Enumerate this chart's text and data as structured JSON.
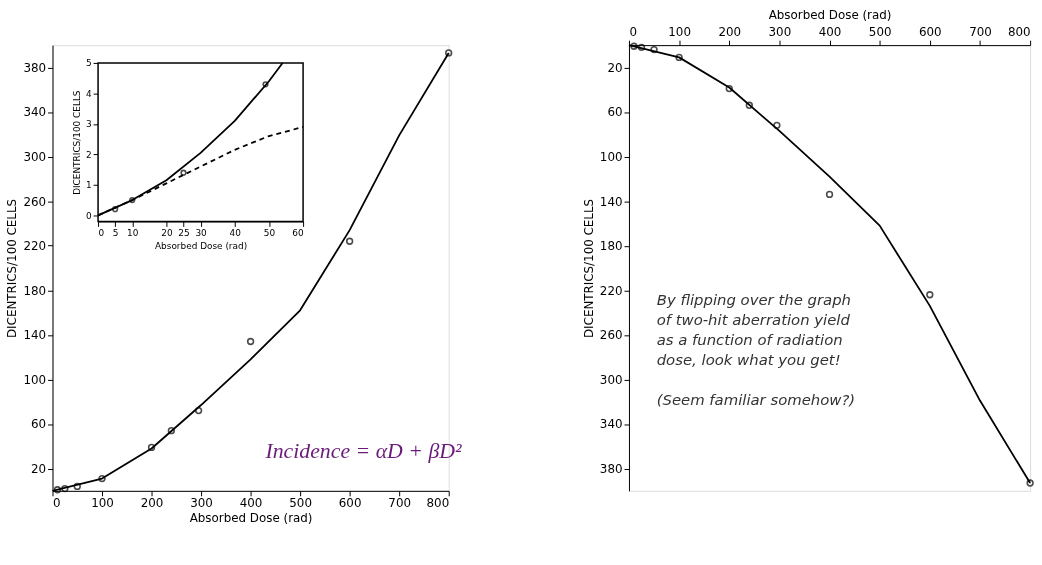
{
  "chart_data": [
    {
      "type": "scatter",
      "xlabel": "Absorbed Dose (rad)",
      "ylabel": "DICENTRICS/100 CELLS",
      "xlim": [
        0,
        800
      ],
      "ylim": [
        0,
        400
      ],
      "xticks": [
        0,
        100,
        200,
        300,
        400,
        500,
        600,
        700,
        800
      ],
      "yticks": [
        20,
        60,
        100,
        140,
        180,
        220,
        260,
        300,
        340,
        380
      ],
      "grid": false,
      "series": [
        {
          "type": "line",
          "color": "#000000",
          "line_style": "solid",
          "marker": "none",
          "x": [
            0,
            100,
            200,
            300,
            400,
            500,
            600,
            700,
            800
          ],
          "values": [
            0,
            11,
            38,
            77,
            118,
            162,
            234,
            319,
            393
          ]
        },
        {
          "color": "#000000",
          "marker": "circle",
          "x": [
            10,
            25,
            50,
            100,
            200,
            240,
            295,
            400,
            600,
            800
          ],
          "values": [
            1,
            2,
            4,
            11,
            39,
            54,
            72,
            134,
            224,
            393
          ]
        }
      ],
      "annotations": [
        "Incidence = αD + βD²"
      ]
    },
    {
      "type": "scatter",
      "xlabel": "Absorbed Dose (rad)",
      "ylabel": "DICENTRICS/100 CELLS",
      "xlim": [
        0,
        60
      ],
      "ylim": [
        -0.2,
        5
      ],
      "xticks": [
        0,
        5,
        10,
        20,
        25,
        30,
        40,
        50,
        60
      ],
      "yticks": [
        0,
        1,
        2,
        3,
        4,
        5
      ],
      "grid": false,
      "series": [
        {
          "type": "line",
          "color": "#000000",
          "line_style": "solid",
          "marker": "none",
          "x": [
            0,
            10,
            20,
            30,
            40,
            50,
            54
          ],
          "values": [
            0,
            0.5,
            1.15,
            2.05,
            3.1,
            4.4,
            5
          ]
        },
        {
          "type": "line",
          "color": "#000000",
          "line_style": "dashed",
          "marker": "none",
          "x": [
            0,
            10,
            20,
            30,
            40,
            50,
            60
          ],
          "values": [
            0,
            0.5,
            1.05,
            1.6,
            2.15,
            2.6,
            2.9
          ]
        },
        {
          "color": "#000000",
          "marker": "circle",
          "x": [
            5,
            10,
            25,
            49
          ],
          "values": [
            0.2,
            0.5,
            1.4,
            4.3
          ]
        }
      ]
    },
    {
      "type": "scatter",
      "xlabel": "Absorbed Dose (rad)",
      "ylabel": "DICENTRICS/100 CELLS",
      "xlim": [
        0,
        800
      ],
      "ylim": [
        400,
        0
      ],
      "xticks": [
        0,
        100,
        200,
        300,
        400,
        500,
        600,
        700,
        800
      ],
      "yticks": [
        20,
        60,
        100,
        140,
        180,
        220,
        260,
        300,
        340,
        380
      ],
      "grid": false,
      "series": [
        {
          "type": "line",
          "color": "#000000",
          "line_style": "solid",
          "marker": "none",
          "x": [
            0,
            100,
            200,
            300,
            400,
            500,
            600,
            700,
            800
          ],
          "values": [
            0,
            11,
            38,
            77,
            118,
            162,
            234,
            319,
            393
          ]
        },
        {
          "color": "#000000",
          "marker": "circle",
          "x": [
            10,
            25,
            50,
            100,
            200,
            240,
            295,
            400,
            600,
            800
          ],
          "values": [
            1,
            2,
            4,
            11,
            39,
            54,
            72,
            134,
            224,
            393
          ]
        }
      ],
      "annotations": [
        "By flipping over the graph of two-hit aberration yield as a function of radiation dose, look what you get!",
        "(Seem familiar somehow?)"
      ]
    }
  ]
}
